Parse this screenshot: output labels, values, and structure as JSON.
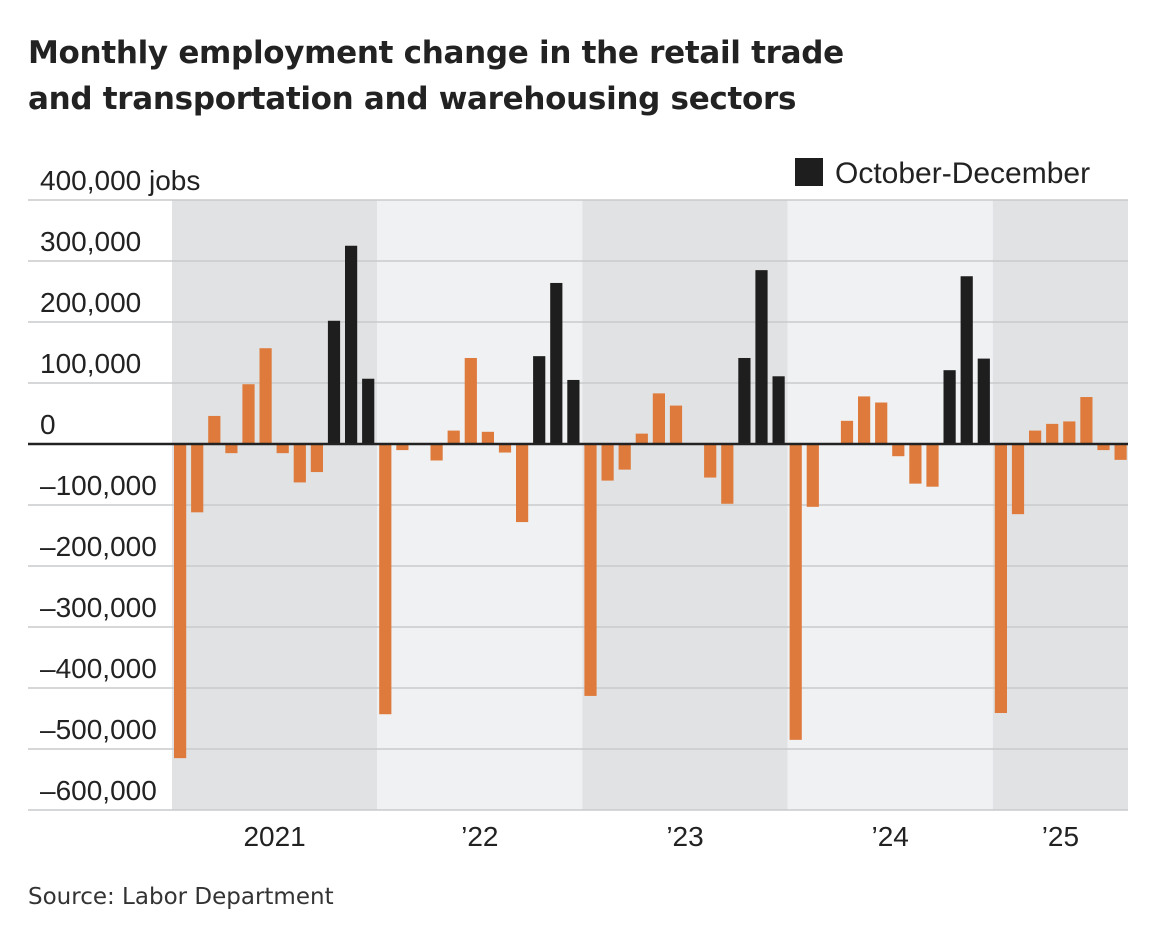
{
  "title_lines": [
    "Monthly employment change in the retail trade",
    "and transportation and warehousing sectors"
  ],
  "source": "Source: Labor Department",
  "colors": {
    "regular": "#de7b3c",
    "highlight": "#1e1e1e",
    "band_dark": "#e1e2e4",
    "band_light": "#f0f1f3",
    "grid": "#c9cacc",
    "zero_line": "#222222"
  },
  "chart_data": {
    "type": "bar",
    "title": "Monthly employment change in the retail trade and transportation and warehousing sectors",
    "ylabel": "",
    "y_unit_label": "jobs",
    "ylim": [
      -600000,
      400000
    ],
    "yticks": [
      400000,
      300000,
      200000,
      100000,
      0,
      -100000,
      -200000,
      -300000,
      -400000,
      -500000,
      -600000
    ],
    "ytick_labels": [
      "400,000",
      "300,000",
      "200,000",
      "100,000",
      "0",
      "–100,000",
      "–200,000",
      "–300,000",
      "–400,000",
      "–500,000",
      "–600,000"
    ],
    "year_labels": [
      "2021",
      "’22",
      "’23",
      "’24",
      "’25"
    ],
    "legend": {
      "label": "October-December",
      "placement": "top-right"
    },
    "grid": true,
    "shaded_bands": "alternating years",
    "series": [
      {
        "years": [
          {
            "year": "2021",
            "values": [
              -515000,
              -112000,
              46000,
              -15000,
              98000,
              157000,
              -15000,
              -63000,
              -46000,
              202000,
              325000,
              107000
            ]
          },
          {
            "year": "2022",
            "values": [
              -443000,
              -10000,
              null,
              -27000,
              22000,
              141000,
              20000,
              -14000,
              -128000,
              144000,
              264000,
              105000
            ]
          },
          {
            "year": "2023",
            "values": [
              -413000,
              -60000,
              -42000,
              17000,
              83000,
              63000,
              null,
              -55000,
              -98000,
              141000,
              285000,
              111000
            ]
          },
          {
            "year": "2024",
            "values": [
              -485000,
              -103000,
              null,
              38000,
              78000,
              68000,
              -20000,
              -65000,
              -70000,
              121000,
              275000,
              140000
            ]
          },
          {
            "year": "2025",
            "values": [
              -441000,
              -115000,
              22000,
              33000,
              37000,
              77000,
              -10000,
              -26000
            ]
          }
        ],
        "highlight_months": [
          "Oct",
          "Nov",
          "Dec"
        ]
      }
    ]
  }
}
